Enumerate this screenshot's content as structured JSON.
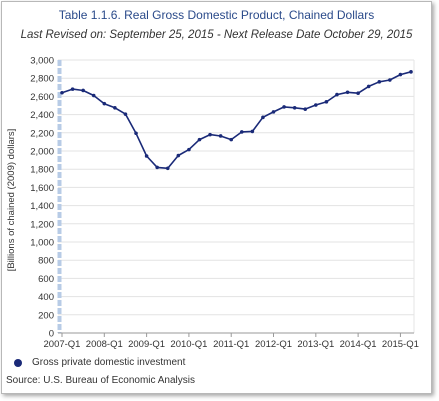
{
  "chart_data": {
    "type": "line",
    "title": "Table 1.1.6. Real Gross Domestic Product, Chained Dollars",
    "subtitle": "Last Revised on: September 25, 2015 - Next Release Date October 29, 2015",
    "ylabel": "[Billions of chained (2009) dollars]",
    "xlabel": "",
    "ylim": [
      0,
      3000
    ],
    "yticks": [
      0,
      200,
      400,
      600,
      800,
      1000,
      1200,
      1400,
      1600,
      1800,
      2000,
      2200,
      2400,
      2600,
      2800,
      3000
    ],
    "ytick_labels": [
      "0",
      "200",
      "400",
      "600",
      "800",
      "1,000",
      "1,200",
      "1,400",
      "1,600",
      "1,800",
      "2,000",
      "2,200",
      "2,400",
      "2,600",
      "2,800",
      "3,000"
    ],
    "xtick_labels": [
      "2007-Q1",
      "2008-Q1",
      "2009-Q1",
      "2010-Q1",
      "2011-Q1",
      "2012-Q1",
      "2013-Q1",
      "2014-Q1",
      "2015-Q1"
    ],
    "categories": [
      "2007-Q1",
      "2007-Q2",
      "2007-Q3",
      "2007-Q4",
      "2008-Q1",
      "2008-Q2",
      "2008-Q3",
      "2008-Q4",
      "2009-Q1",
      "2009-Q2",
      "2009-Q3",
      "2009-Q4",
      "2010-Q1",
      "2010-Q2",
      "2010-Q3",
      "2010-Q4",
      "2011-Q1",
      "2011-Q2",
      "2011-Q3",
      "2011-Q4",
      "2012-Q1",
      "2012-Q2",
      "2012-Q3",
      "2012-Q4",
      "2013-Q1",
      "2013-Q2",
      "2013-Q3",
      "2013-Q4",
      "2014-Q1",
      "2014-Q2",
      "2014-Q3",
      "2014-Q4",
      "2015-Q1",
      "2015-Q2"
    ],
    "series": [
      {
        "name": "Gross private domestic investment",
        "color": "#1a2a78",
        "values": [
          2640,
          2680,
          2665,
          2610,
          2520,
          2475,
          2405,
          2195,
          1945,
          1820,
          1810,
          1950,
          2015,
          2125,
          2180,
          2165,
          2125,
          2210,
          2215,
          2370,
          2430,
          2485,
          2475,
          2460,
          2505,
          2540,
          2620,
          2645,
          2635,
          2710,
          2760,
          2780,
          2840,
          2870
        ]
      }
    ],
    "grid": true,
    "legend_position": "bottom-left",
    "source": "Source: U.S. Bureau of Economic  Analysis"
  }
}
